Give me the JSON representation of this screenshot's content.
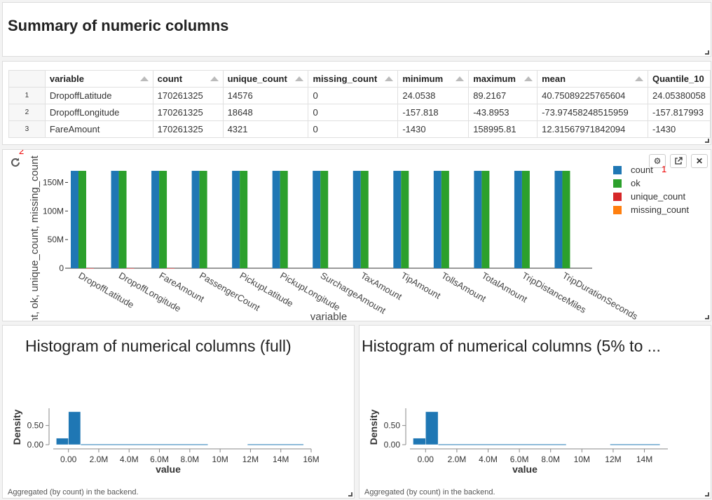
{
  "summary_panel": {
    "title": "Summary of numeric columns"
  },
  "table": {
    "columns": [
      "variable",
      "count",
      "unique_count",
      "missing_count",
      "minimum",
      "maximum",
      "mean",
      "Quantile_10"
    ],
    "rows": [
      {
        "idx": "1",
        "cells": [
          "DropoffLatitude",
          "170261325",
          "14576",
          "0",
          "24.0538",
          "89.2167",
          "40.75089225765604",
          "24.05380058"
        ]
      },
      {
        "idx": "2",
        "cells": [
          "DropoffLongitude",
          "170261325",
          "18648",
          "0",
          "-157.818",
          "-43.8953",
          "-73.97458248515959",
          "-157.817993"
        ]
      },
      {
        "idx": "3",
        "cells": [
          "FareAmount",
          "170261325",
          "4321",
          "0",
          "-1430",
          "158995.81",
          "12.31567971842094",
          "-1430"
        ]
      }
    ]
  },
  "bar_panel": {
    "badge_settings": "1",
    "badge_refresh": "2",
    "icons": {
      "refresh": "refresh-icon",
      "settings": "gear-icon",
      "popout": "external-link-icon",
      "close": "close-icon"
    }
  },
  "chart_data": [
    {
      "type": "bar",
      "title": "",
      "xlabel": "variable",
      "ylabel": "count, ok, unique_count, missing_count",
      "ylim": [
        0,
        180000000
      ],
      "yticks": [
        "0",
        "50M",
        "100M",
        "150M"
      ],
      "categories": [
        "DropoffLatitude",
        "DropoffLongitude",
        "FareAmount",
        "PassengerCount",
        "PickupLatitude",
        "PickupLongitude",
        "SurchargeAmount",
        "TaxAmount",
        "TipAmount",
        "TollsAmount",
        "TotalAmount",
        "TripDistanceMiles",
        "TripDurationSeconds"
      ],
      "series": [
        {
          "name": "count",
          "color": "#1f77b4",
          "values": [
            170261325,
            170261325,
            170261325,
            170261325,
            170261325,
            170261325,
            170261325,
            170261325,
            170261325,
            170261325,
            170261325,
            170261325,
            170261325
          ]
        },
        {
          "name": "ok",
          "color": "#2ca02c",
          "values": [
            170261325,
            170261325,
            170261325,
            170261325,
            170261325,
            170261325,
            170261325,
            170261325,
            170261325,
            170261325,
            170261325,
            170261325,
            170261325
          ]
        },
        {
          "name": "unique_count",
          "color": "#d62728",
          "values": [
            14576,
            18648,
            4321,
            0,
            0,
            0,
            0,
            0,
            0,
            0,
            0,
            0,
            0
          ]
        },
        {
          "name": "missing_count",
          "color": "#ff7f0e",
          "values": [
            0,
            0,
            0,
            0,
            0,
            0,
            0,
            0,
            0,
            0,
            0,
            0,
            0
          ]
        }
      ],
      "legend": "right"
    },
    {
      "type": "bar",
      "title": "Histogram of numerical columns (full)",
      "xlabel": "value",
      "ylabel": "Density",
      "xlim": [
        -1000000,
        16000000
      ],
      "ylim": [
        0,
        0.95
      ],
      "xticks": [
        "0.00",
        "2.0M",
        "4.0M",
        "6.0M",
        "8.0M",
        "10M",
        "12M",
        "14M",
        "16M"
      ],
      "yticks": [
        "0.00",
        "0.50"
      ],
      "bins": [
        {
          "x0": -800000,
          "x1": 0,
          "density": 0.17
        },
        {
          "x0": 0,
          "x1": 800000,
          "density": 0.86
        },
        {
          "x0": 800000,
          "x1": 9200000,
          "density": 0.015
        },
        {
          "x0": 11800000,
          "x1": 15500000,
          "density": 0.015
        }
      ],
      "footnote": "Aggregated (by count) in the backend."
    },
    {
      "type": "bar",
      "title": "Histogram of numerical columns (5% to ...",
      "xlabel": "value",
      "ylabel": "Density",
      "xlim": [
        -1000000,
        15500000
      ],
      "ylim": [
        0,
        0.95
      ],
      "xticks": [
        "0.00",
        "2.0M",
        "4.0M",
        "6.0M",
        "8.0M",
        "10M",
        "12M",
        "14M"
      ],
      "yticks": [
        "0.00",
        "0.50"
      ],
      "bins": [
        {
          "x0": -800000,
          "x1": 0,
          "density": 0.17
        },
        {
          "x0": 0,
          "x1": 800000,
          "density": 0.86
        },
        {
          "x0": 800000,
          "x1": 9000000,
          "density": 0.015
        },
        {
          "x0": 11800000,
          "x1": 15000000,
          "density": 0.015
        }
      ],
      "footnote": "Aggregated (by count) in the backend."
    }
  ]
}
